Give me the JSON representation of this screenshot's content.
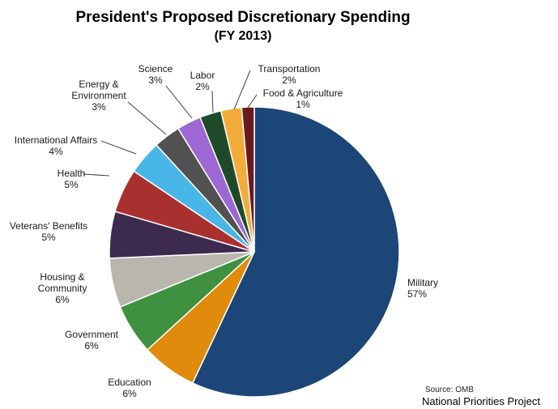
{
  "chart_data": {
    "type": "pie",
    "title": "President's Proposed Discretionary  Spending",
    "subtitle": "(FY 2013)",
    "slices": [
      {
        "label_lines": [
          "Military"
        ],
        "pct_text": "57%",
        "value": 57,
        "color": "#1b4677"
      },
      {
        "label_lines": [
          "Education"
        ],
        "pct_text": "6%",
        "value": 6.2,
        "color": "#e08b0b"
      },
      {
        "label_lines": [
          "Government"
        ],
        "pct_text": "6%",
        "value": 5.6,
        "color": "#3f913f"
      },
      {
        "label_lines": [
          "Housing &",
          "Community"
        ],
        "pct_text": "6%",
        "value": 5.5,
        "color": "#b9b6ae"
      },
      {
        "label_lines": [
          "Veterans' Benefits"
        ],
        "pct_text": "5%",
        "value": 5.2,
        "color": "#3d2a4f"
      },
      {
        "label_lines": [
          "Health"
        ],
        "pct_text": "5%",
        "value": 4.9,
        "color": "#a8302e"
      },
      {
        "label_lines": [
          "International  Affairs"
        ],
        "pct_text": "4%",
        "value": 3.8,
        "color": "#48b6e6"
      },
      {
        "label_lines": [
          "Energy &",
          "Environment"
        ],
        "pct_text": "3%",
        "value": 3.0,
        "color": "#515151"
      },
      {
        "label_lines": [
          "Science"
        ],
        "pct_text": "3%",
        "value": 2.7,
        "color": "#9c68d3"
      },
      {
        "label_lines": [
          "Labor"
        ],
        "pct_text": "2%",
        "value": 2.4,
        "color": "#1e4a2a"
      },
      {
        "label_lines": [
          "Transportation"
        ],
        "pct_text": "2%",
        "value": 2.3,
        "color": "#f2ac3a"
      },
      {
        "label_lines": [
          "Food & Agriculture"
        ],
        "pct_text": "1%",
        "value": 1.4,
        "color": "#6a1a1f"
      }
    ]
  },
  "source": "Source: OMB",
  "organization": "National Priorities Project"
}
